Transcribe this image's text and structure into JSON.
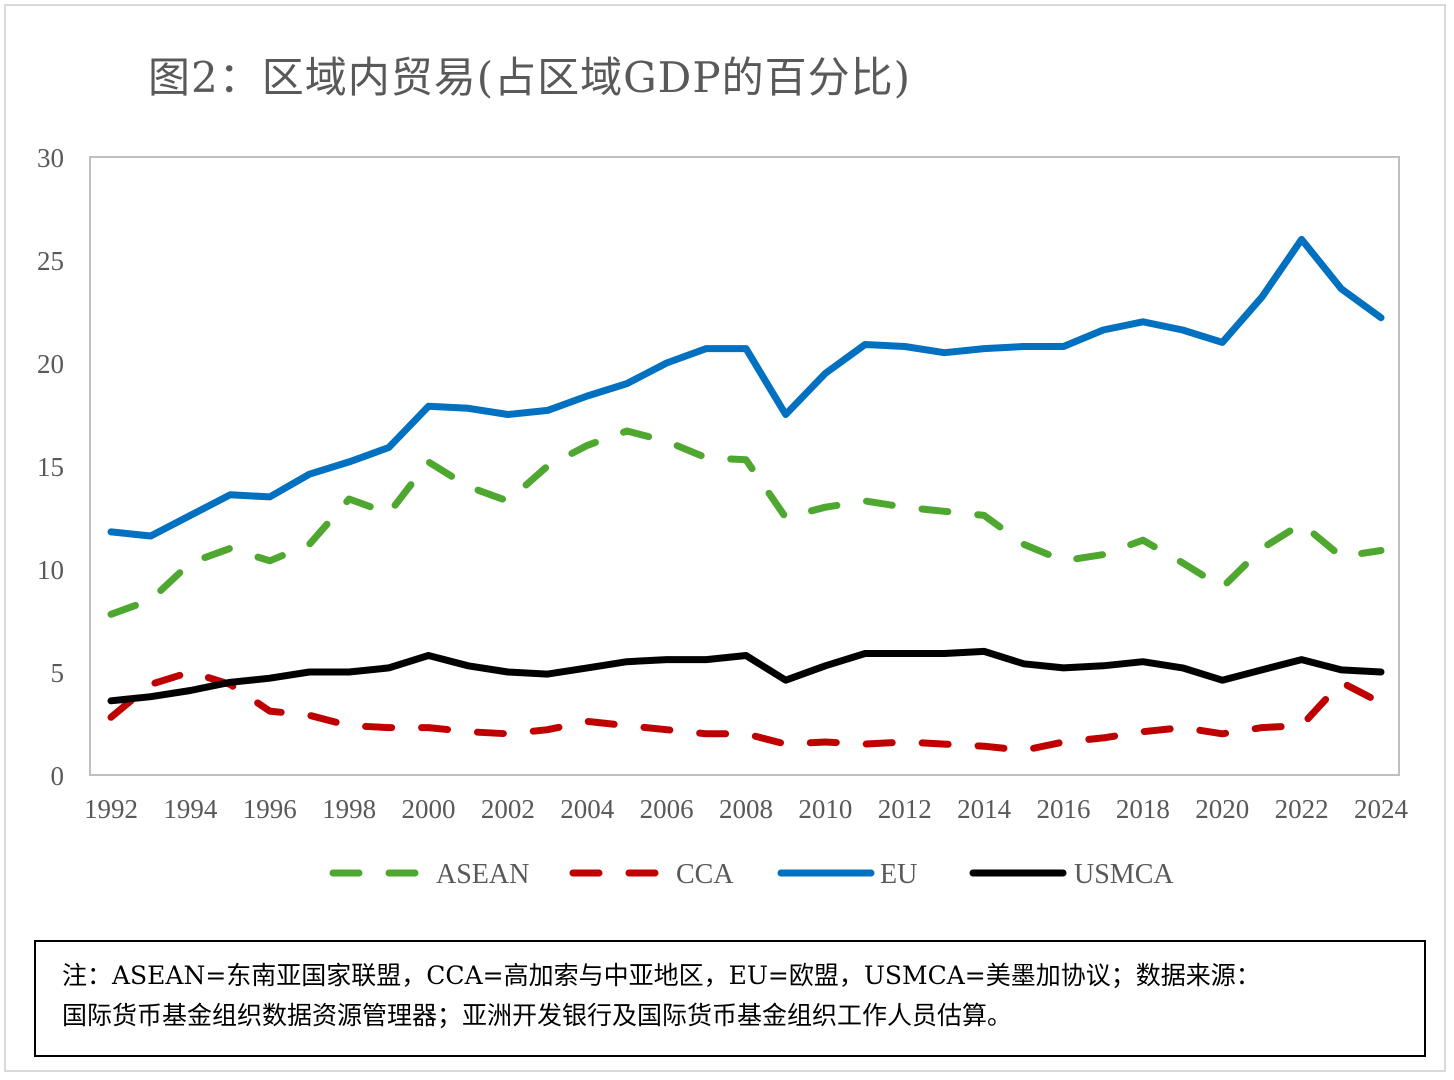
{
  "title": "图2：区域内贸易(占区域GDP的百分比)",
  "note": {
    "line1": "注：ASEAN=东南亚国家联盟，CCA=高加索与中亚地区，EU=欧盟，USMCA=美墨加协议；数据来源：",
    "line2": "国际货币基金组织数据资源管理器；亚洲开发银行及国际货币基金组织工作人员估算。"
  },
  "chart_data": {
    "type": "line",
    "title": "图2：区域内贸易(占区域GDP的百分比)",
    "xlabel": "",
    "ylabel": "",
    "ylim": [
      0,
      30
    ],
    "yticks": [
      0,
      5,
      10,
      15,
      20,
      25,
      30
    ],
    "x": [
      1992,
      1993,
      1994,
      1995,
      1996,
      1997,
      1998,
      1999,
      2000,
      2001,
      2002,
      2003,
      2004,
      2005,
      2006,
      2007,
      2008,
      2009,
      2010,
      2011,
      2012,
      2013,
      2014,
      2015,
      2016,
      2017,
      2018,
      2019,
      2020,
      2021,
      2022,
      2023,
      2024
    ],
    "xticks": [
      1992,
      1994,
      1996,
      1998,
      2000,
      2002,
      2004,
      2006,
      2008,
      2010,
      2012,
      2014,
      2016,
      2018,
      2020,
      2022,
      2024
    ],
    "grid": false,
    "legend_position": "bottom",
    "series": [
      {
        "name": "ASEAN",
        "color": "#4ea72e",
        "dash": "dashed",
        "values": [
          7.8,
          8.5,
          10.3,
          11.0,
          10.4,
          11.2,
          13.4,
          12.7,
          15.2,
          14.0,
          13.3,
          15.0,
          16.0,
          16.7,
          16.2,
          15.4,
          15.3,
          12.5,
          13.0,
          13.3,
          13.0,
          12.8,
          12.6,
          11.2,
          10.4,
          10.7,
          11.4,
          10.3,
          9.1,
          11.0,
          12.2,
          10.6,
          10.9
        ]
      },
      {
        "name": "CCA",
        "color": "#c00000",
        "dash": "dashed",
        "values": [
          2.8,
          4.4,
          5.0,
          4.4,
          3.1,
          2.9,
          2.4,
          2.3,
          2.3,
          2.1,
          2.0,
          2.2,
          2.6,
          2.4,
          2.2,
          2.0,
          2.0,
          1.5,
          1.6,
          1.5,
          1.6,
          1.5,
          1.4,
          1.2,
          1.6,
          1.8,
          2.1,
          2.3,
          2.0,
          2.3,
          2.4,
          4.5,
          3.5
        ]
      },
      {
        "name": "EU",
        "color": "#0070c0",
        "dash": "solid",
        "values": [
          11.8,
          11.6,
          12.6,
          13.6,
          13.5,
          14.6,
          15.2,
          15.9,
          17.9,
          17.8,
          17.5,
          17.7,
          18.4,
          19.0,
          20.0,
          20.7,
          20.7,
          17.5,
          19.5,
          20.9,
          20.8,
          20.5,
          20.7,
          20.8,
          20.8,
          21.6,
          22.0,
          21.6,
          21.0,
          23.2,
          26.0,
          23.6,
          22.2
        ]
      },
      {
        "name": "USMCA",
        "color": "#000000",
        "dash": "solid",
        "values": [
          3.6,
          3.8,
          4.1,
          4.5,
          4.7,
          5.0,
          5.0,
          5.2,
          5.8,
          5.3,
          5.0,
          4.9,
          5.2,
          5.5,
          5.6,
          5.6,
          5.8,
          4.6,
          5.3,
          5.9,
          5.9,
          5.9,
          6.0,
          5.4,
          5.2,
          5.3,
          5.5,
          5.2,
          4.6,
          5.1,
          5.6,
          5.1,
          5.0
        ]
      }
    ]
  }
}
